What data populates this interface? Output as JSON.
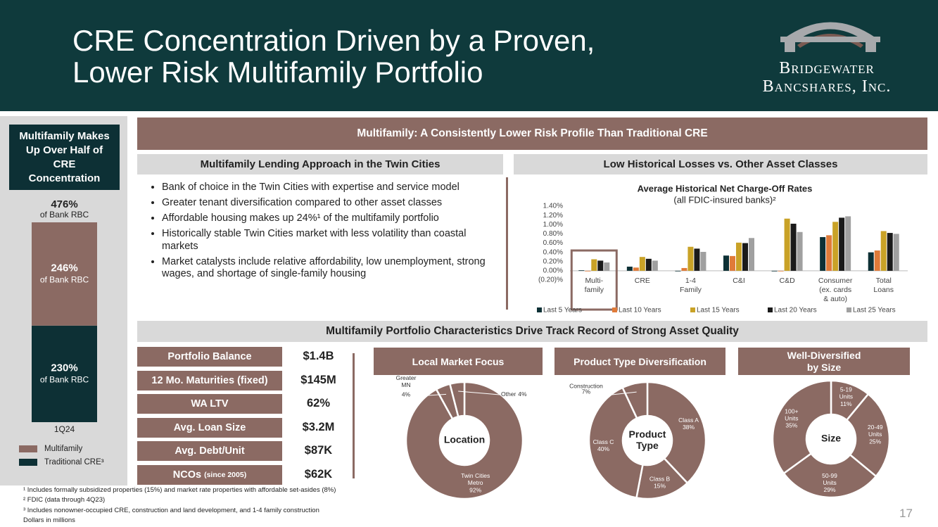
{
  "header": {
    "title_lines": [
      "CRE Concentration Driven by a Proven,",
      "Lower Risk Multifamily Portfolio"
    ],
    "logo_lines": [
      "Bridgewater",
      "Bancshares, Inc."
    ]
  },
  "banner_top": "Multifamily: A Consistently Lower Risk Profile Than Traditional CRE",
  "approach": {
    "heading": "Multifamily Lending Approach in the Twin Cities",
    "bullets": [
      "Bank of choice in the Twin Cities with expertise and service model",
      "Greater tenant diversification compared to other asset classes",
      "Affordable housing makes up 24%¹ of the multifamily portfolio",
      "Historically stable Twin Cities market with less volatility than coastal markets",
      "Market catalysts include relative affordability, low unemployment, strong wages, and shortage of single-family housing"
    ]
  },
  "losses_heading": "Low Historical Losses vs. Other Asset Classes",
  "banner_bottom": "Multifamily Portfolio Characteristics Drive Track Record of Strong Asset Quality",
  "metrics": [
    {
      "label": "Portfolio Balance",
      "value": "$1.4B"
    },
    {
      "label": "12 Mo. Maturities (fixed)",
      "value": "$145M"
    },
    {
      "label": "WA LTV",
      "value": "62%"
    },
    {
      "label": "Avg. Loan Size",
      "value": "$3.2M"
    },
    {
      "label": "Avg. Debt/Unit",
      "value": "$87K"
    },
    {
      "label": "NCOs",
      "note": "(since 2005)",
      "value": "$62K"
    }
  ],
  "footnotes": [
    "¹ Includes formally subsidized properties (15%) and market rate properties with affordable set-asides (8%)",
    "² FDIC (data through 4Q23)",
    "³ Includes nonowner-occupied CRE, construction and land development, and 1-4 family construction",
    "Dollars in millions"
  ],
  "page_number": "17",
  "chart_data": [
    {
      "type": "stacked_bar",
      "title": "Multifamily Makes Up Over Half of CRE Concentration",
      "categories": [
        "1Q24"
      ],
      "total_label": "476%",
      "total_note": "of Bank RBC",
      "ylim": [
        0,
        476
      ],
      "series": [
        {
          "name": "Traditional CRE³",
          "color": "#0d3035",
          "values": [
            230
          ],
          "value_labels": [
            "230%"
          ],
          "note": "of Bank RBC"
        },
        {
          "name": "Multifamily",
          "color": "#8b6a63",
          "values": [
            246
          ],
          "value_labels": [
            "246%"
          ],
          "note": "of Bank RBC"
        }
      ]
    },
    {
      "type": "bar",
      "title": "Average Historical Net Charge-Off Rates",
      "subtitle": "(all FDIC-insured banks)²",
      "categories": [
        "Multi-\nfamily",
        "CRE",
        "1-4\nFamily",
        "C&I",
        "C&D",
        "Consumer\n(ex. cards\n& auto)",
        "Total\nLoans"
      ],
      "ylim": [
        -0.2,
        1.4
      ],
      "yticks": [
        {
          "value": -0.2,
          "label": "(0.20)%"
        },
        {
          "value": 0,
          "label": "0.00%"
        },
        {
          "value": 0.2,
          "label": "0.20%"
        },
        {
          "value": 0.4,
          "label": "0.40%"
        },
        {
          "value": 0.6,
          "label": "0.60%"
        },
        {
          "value": 0.8,
          "label": "0.80%"
        },
        {
          "value": 1.0,
          "label": "1.00%"
        },
        {
          "value": 1.2,
          "label": "1.20%"
        },
        {
          "value": 1.4,
          "label": "1.40%"
        }
      ],
      "highlight_color": "#8b6a63",
      "series": [
        {
          "name": "Last 5 Years",
          "color": "#0d3035",
          "values": [
            0.01,
            0.09,
            -0.01,
            0.33,
            0.0,
            0.73,
            0.4
          ]
        },
        {
          "name": "Last 10 Years",
          "color": "#e07b39",
          "values": [
            0.0,
            0.07,
            0.06,
            0.32,
            0.0,
            0.77,
            0.44
          ]
        },
        {
          "name": "Last 15 Years",
          "color": "#c9a227",
          "values": [
            0.25,
            0.3,
            0.52,
            0.61,
            1.13,
            1.06,
            0.86
          ]
        },
        {
          "name": "Last 20 Years",
          "color": "#1a1a1a",
          "values": [
            0.22,
            0.26,
            0.48,
            0.6,
            1.02,
            1.15,
            0.82
          ]
        },
        {
          "name": "Last 25 Years",
          "color": "#a0a0a0",
          "values": [
            0.18,
            0.22,
            0.41,
            0.71,
            0.84,
            1.18,
            0.8
          ]
        }
      ]
    },
    {
      "type": "pie",
      "title": "Local Market Focus",
      "center_label": "Location",
      "color": "#8b6a63",
      "categories": [
        "Twin Cities\nMetro",
        "Greater\nMN",
        "Other"
      ],
      "values": [
        92,
        4,
        4
      ],
      "value_labels": [
        "92%",
        "4%",
        "4%"
      ]
    },
    {
      "type": "pie",
      "title": "Product Type Diversification",
      "center_label": "Product\nType",
      "color": "#8b6a63",
      "categories": [
        "Class A",
        "Class B",
        "Class C",
        "Construction"
      ],
      "values": [
        38,
        15,
        40,
        7
      ],
      "value_labels": [
        "38%",
        "15%",
        "40%",
        "7%"
      ]
    },
    {
      "type": "pie",
      "title": "Well-Diversified\nby Size",
      "center_label": "Size",
      "color": "#8b6a63",
      "categories": [
        "5-19\nUnits",
        "20-49\nUnits",
        "50-99\nUnits",
        "100+\nUnits"
      ],
      "values": [
        11,
        25,
        29,
        35
      ],
      "value_labels": [
        "11%",
        "25%",
        "29%",
        "35%"
      ]
    }
  ]
}
